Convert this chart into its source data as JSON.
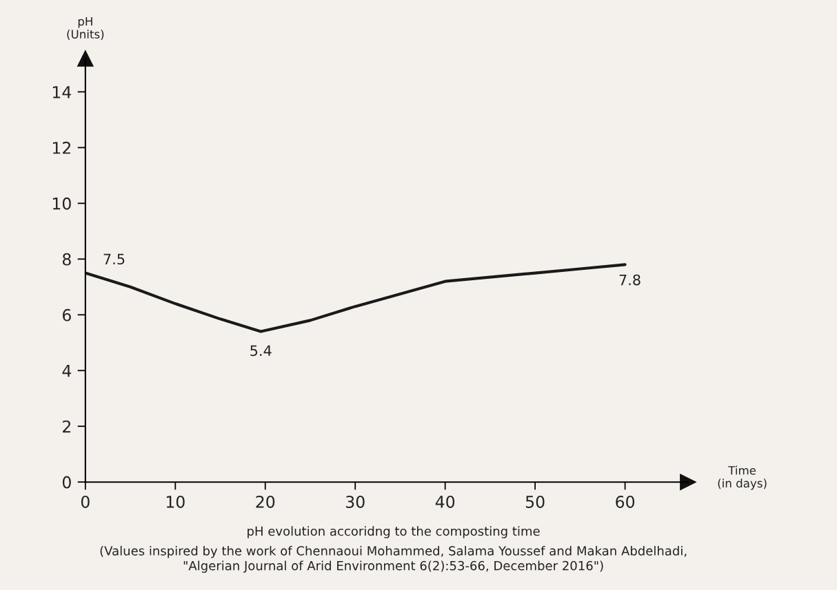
{
  "chart_data": {
    "type": "line",
    "title": "pH evolution accoridng to the composting time",
    "xlabel": "Time\n(in days)",
    "ylabel": "pH\n(Units)",
    "annotations": [
      "(Values inspired by the work of Chennaoui Mohammed, Salama Youssef and Makan Abdelhadi,\n\"Algerian Journal of Arid Environment 6(2):53-66, December 2016\")"
    ],
    "x": [
      0,
      5,
      10,
      15,
      19.5,
      25,
      30,
      35,
      40,
      50,
      55,
      60
    ],
    "series": [
      {
        "color": "#1a1a1a",
        "values": [
          7.5,
          7.0,
          6.4,
          5.85,
          5.4,
          5.8,
          6.3,
          6.75,
          7.2,
          7.5,
          7.65,
          7.8
        ],
        "value_labels": [
          "7.5",
          null,
          null,
          null,
          "5.4",
          null,
          null,
          null,
          null,
          null,
          null,
          "7.8"
        ]
      }
    ],
    "xlim": [
      0,
      67
    ],
    "ylim": [
      0,
      15.2
    ],
    "xticks": [
      0,
      10,
      20,
      30,
      40,
      50,
      60
    ],
    "yticks": [
      0,
      2,
      4,
      6,
      8,
      10,
      12,
      14
    ],
    "grid": false,
    "legend": false,
    "marker": "none",
    "line_style": "solid"
  }
}
